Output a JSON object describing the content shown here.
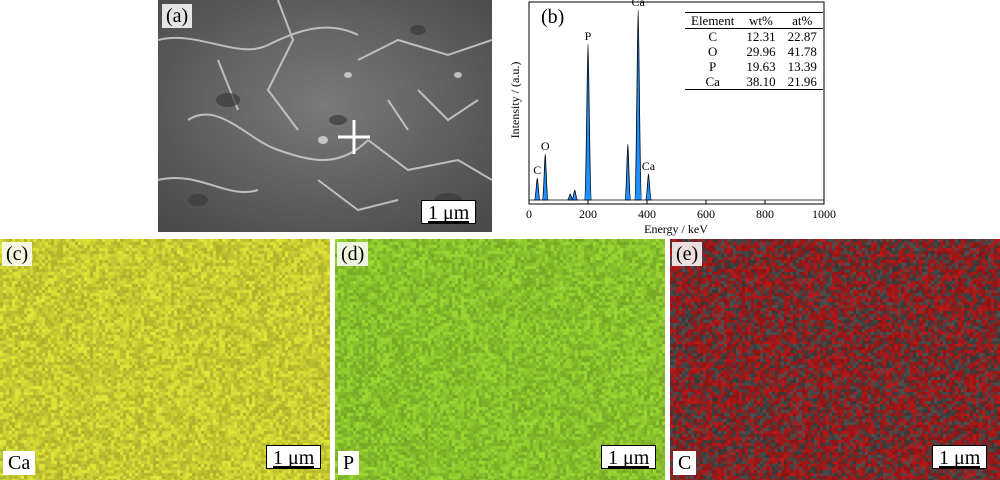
{
  "panels": {
    "a": {
      "label": "(a)",
      "scale": "1 μm"
    },
    "b": {
      "label": "(b)"
    },
    "c": {
      "label": "(c)",
      "element": "Ca",
      "scale": "1 μm",
      "color": "#cfd434"
    },
    "d": {
      "label": "(d)",
      "element": "P",
      "scale": "1 μm",
      "color": "#8fc82e"
    },
    "e": {
      "label": "(e)",
      "element": "C",
      "scale": "1 μm",
      "color": "#b01818"
    }
  },
  "composition_table": {
    "headers": [
      "Element",
      "wt%",
      "at%"
    ],
    "rows": [
      [
        "C",
        "12.31",
        "22.87"
      ],
      [
        "O",
        "29.96",
        "41.78"
      ],
      [
        "P",
        "19.63",
        "13.39"
      ],
      [
        "Ca",
        "38.10",
        "21.96"
      ]
    ]
  },
  "chart_data": {
    "type": "line",
    "xlabel": "Energy / keV",
    "ylabel": "Intensity / (a.u.)",
    "xlim": [
      0,
      1000
    ],
    "ylim": [
      0,
      1
    ],
    "xticks": [
      "0",
      "200",
      "400",
      "600",
      "800",
      "1000"
    ],
    "color": "#1e90ff",
    "peaks": [
      {
        "x": 28,
        "y": 0.13,
        "label": "C"
      },
      {
        "x": 55,
        "y": 0.25,
        "label": "O"
      },
      {
        "x": 140,
        "y": 0.05,
        "label": ""
      },
      {
        "x": 155,
        "y": 0.07,
        "label": ""
      },
      {
        "x": 200,
        "y": 0.8,
        "label": "P"
      },
      {
        "x": 335,
        "y": 0.3,
        "label": ""
      },
      {
        "x": 370,
        "y": 0.97,
        "label": "Ca"
      },
      {
        "x": 405,
        "y": 0.15,
        "label": "Ca"
      }
    ]
  }
}
